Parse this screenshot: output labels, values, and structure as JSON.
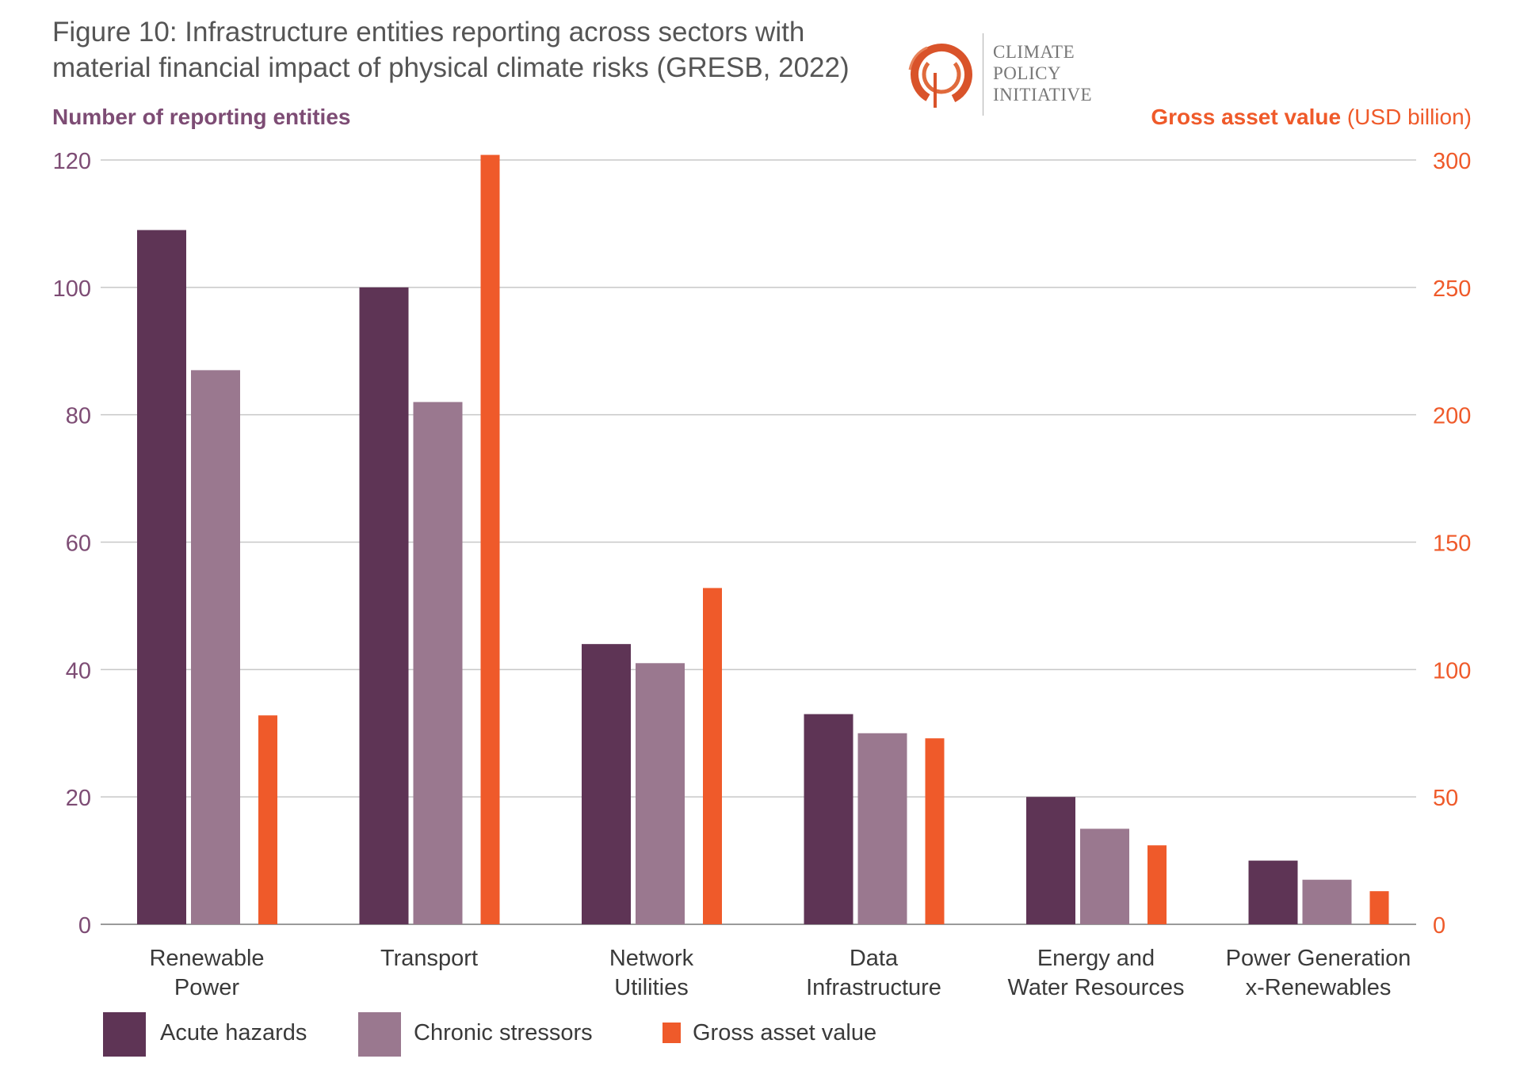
{
  "header": {
    "title_line1": "Figure 10: Infrastructure entities reporting across sectors with",
    "title_line2": "material financial impact of physical climate risks (GRESB, 2022)"
  },
  "logo": {
    "icon": "cpi-circle-logo-icon",
    "line1": "CLIMATE",
    "line2": "POLICY",
    "line3": "INITIATIVE",
    "color": "#d9532a"
  },
  "axes": {
    "left_title": "Number of reporting entities",
    "right_title_bold": "Gross asset value",
    "right_title_unit": "(USD billion)"
  },
  "colors": {
    "acute": "#5e3455",
    "chronic": "#9a788f",
    "gav": "#ef5a2a",
    "left_axis": "#7d4c74",
    "right_axis": "#ef5a2a"
  },
  "chart_data": {
    "type": "bar",
    "categories": [
      [
        "Renewable",
        "Power"
      ],
      [
        "Transport"
      ],
      [
        "Network",
        "Utilities"
      ],
      [
        "Data",
        "Infrastructure"
      ],
      [
        "Energy and",
        "Water Resources"
      ],
      [
        "Power Generation",
        "x-Renewables"
      ]
    ],
    "series": [
      {
        "name": "Acute hazards",
        "axis": "left",
        "values": [
          109,
          100,
          44,
          33,
          20,
          10
        ]
      },
      {
        "name": "Chronic stressors",
        "axis": "left",
        "values": [
          87,
          82,
          41,
          30,
          15,
          7
        ]
      },
      {
        "name": "Gross asset value",
        "axis": "right",
        "values": [
          82,
          302,
          132,
          73,
          31,
          13
        ]
      }
    ],
    "y_left": {
      "range": [
        0,
        120
      ],
      "ticks": [
        "0",
        "20",
        "40",
        "60",
        "80",
        "100",
        "120"
      ]
    },
    "y_right": {
      "range": [
        0,
        300
      ],
      "ticks": [
        "0",
        "50",
        "100",
        "150",
        "200",
        "250",
        "300"
      ]
    },
    "grid": true,
    "legend_position": "bottom-left"
  }
}
